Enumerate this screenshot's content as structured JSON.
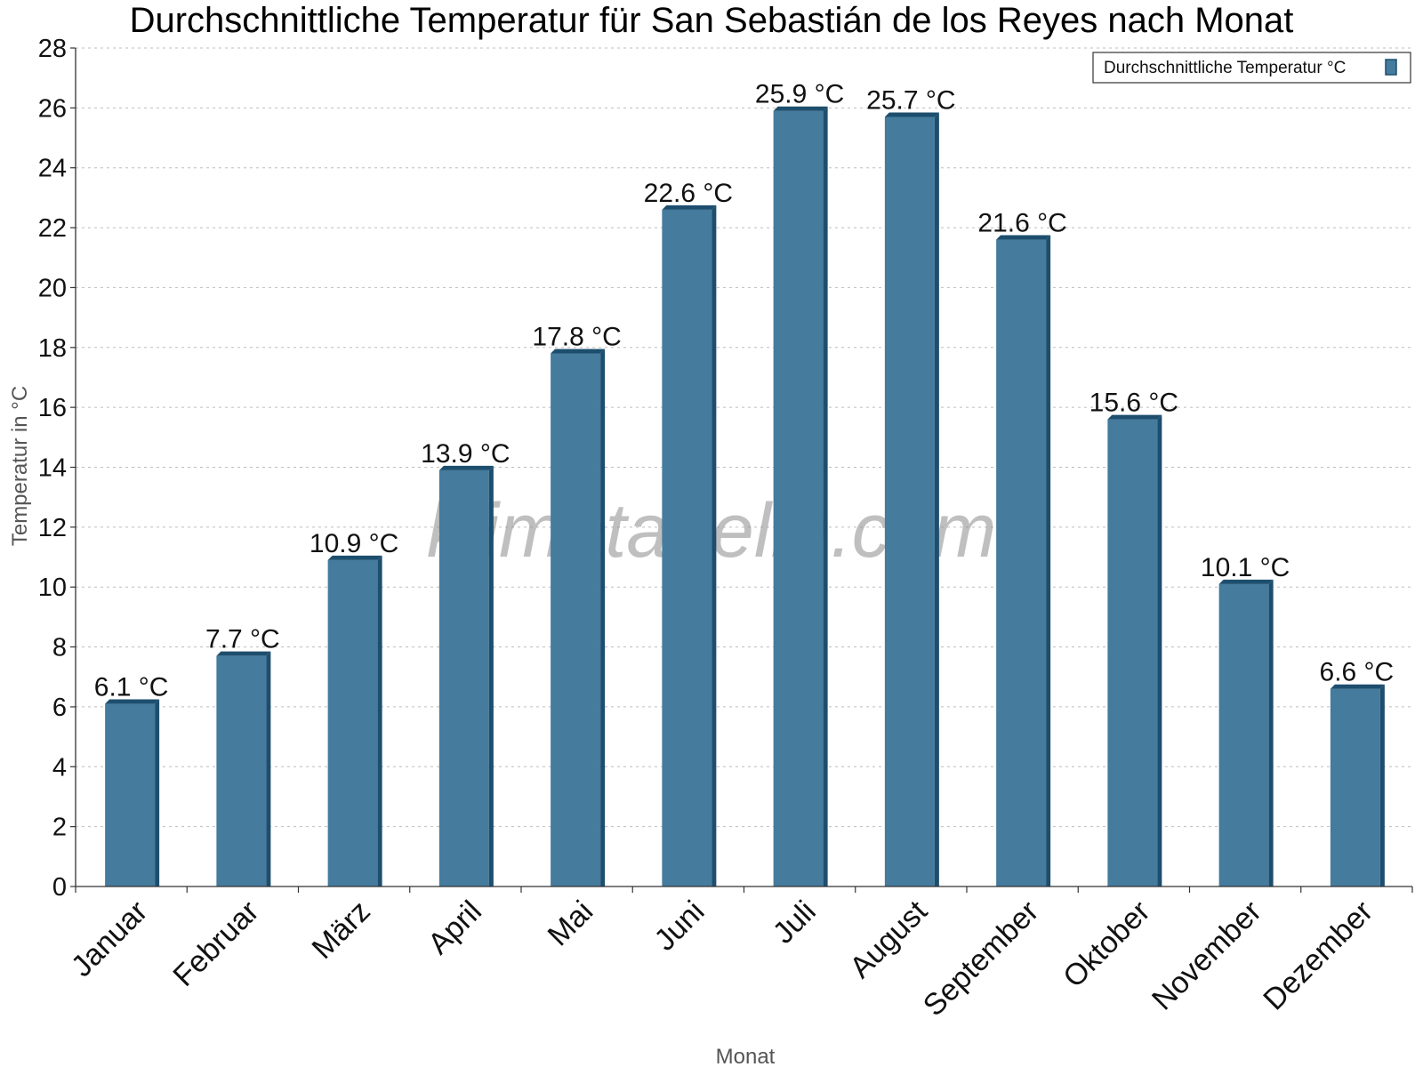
{
  "chart_data": {
    "type": "bar",
    "title": "Durchschnittliche Temperatur für San Sebastián de los Reyes nach Monat",
    "xlabel": "Monat",
    "ylabel": "Temperatur in °C",
    "categories": [
      "Januar",
      "Februar",
      "März",
      "April",
      "Mai",
      "Juni",
      "Juli",
      "August",
      "September",
      "Oktober",
      "November",
      "Dezember"
    ],
    "series": [
      {
        "name": "Durchschnittliche Temperatur °C",
        "values": [
          6.1,
          7.7,
          10.9,
          13.9,
          17.8,
          22.6,
          25.9,
          25.7,
          21.6,
          15.6,
          10.1,
          6.6
        ],
        "labels": [
          "6.1 °C",
          "7.7 °C",
          "10.9 °C",
          "13.9 °C",
          "17.8 °C",
          "22.6 °C",
          "25.9 °C",
          "25.7 °C",
          "21.6 °C",
          "15.6 °C",
          "10.1 °C",
          "6.6 °C"
        ],
        "color": "#457b9d",
        "edge_color": "#1d4e6e"
      }
    ],
    "ylim": [
      0,
      28
    ],
    "yticks": [
      0,
      2,
      4,
      6,
      8,
      10,
      12,
      14,
      16,
      18,
      20,
      22,
      24,
      26,
      28
    ],
    "grid": true,
    "legend_position": "top-right"
  },
  "watermark": "klimatabelle.com"
}
